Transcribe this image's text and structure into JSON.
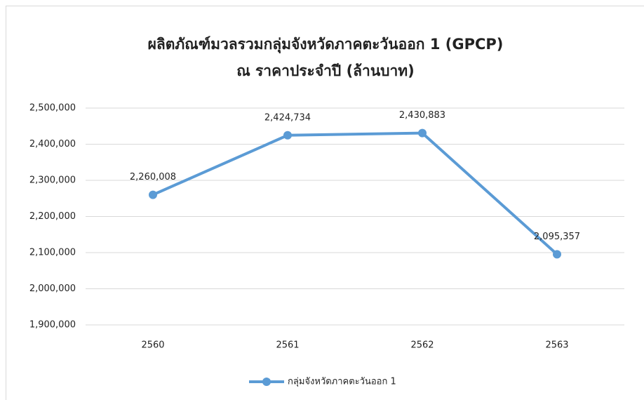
{
  "chart_data": {
    "type": "line",
    "title": "ผลิตภัณฑ์มวลรวมกลุ่มจังหวัดภาคตะวันออก 1 (GPCP)",
    "subtitle": "ณ ราคาประจำปี (ล้านบาท)",
    "categories": [
      "2560",
      "2561",
      "2562",
      "2563"
    ],
    "series": [
      {
        "name": "กลุ่มจังหวัดภาคตะวันออก 1",
        "color": "#5b9bd5",
        "values": [
          2260008,
          2424734,
          2430883,
          2095357
        ],
        "value_labels": [
          "2,260,008",
          "2,424,734",
          "2,430,883",
          "2,095,357"
        ]
      }
    ],
    "ylim": [
      1900000,
      2500000
    ],
    "yticks": [
      {
        "value": 1900000,
        "label": "1,900,000"
      },
      {
        "value": 2000000,
        "label": "2,000,000"
      },
      {
        "value": 2100000,
        "label": "2,100,000"
      },
      {
        "value": 2200000,
        "label": "2,200,000"
      },
      {
        "value": 2300000,
        "label": "2,300,000"
      },
      {
        "value": 2400000,
        "label": "2,400,000"
      },
      {
        "value": 2500000,
        "label": "2,500,000"
      }
    ],
    "grid": true,
    "legend": "bottom"
  }
}
